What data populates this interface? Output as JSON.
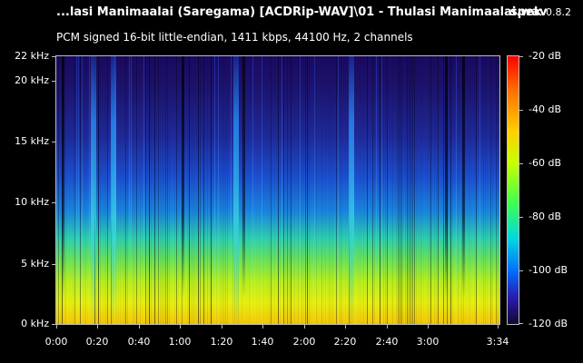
{
  "window": {
    "file_title": "...lasi Manimaalai (Saregama) [ACDRip-WAV]\\01 - Thulasi Manimaalai.wav",
    "app_name": "spek",
    "app_version": "0.8.2"
  },
  "info": "PCM signed 16-bit little-endian, 1411 kbps, 44100 Hz, 2 channels",
  "axis": {
    "y_labels": [
      "22 kHz",
      "20 kHz",
      "15 kHz",
      "10 kHz",
      "5 kHz",
      "0 kHz"
    ],
    "x_labels": [
      "0:00",
      "0:20",
      "0:40",
      "1:00",
      "1:20",
      "1:40",
      "2:00",
      "2:20",
      "2:40",
      "3:00",
      "3:34"
    ]
  },
  "colorbar": {
    "labels": [
      "-20 dB",
      "-40 dB",
      "-60 dB",
      "-80 dB",
      "-100 dB",
      "-120 dB"
    ]
  }
}
